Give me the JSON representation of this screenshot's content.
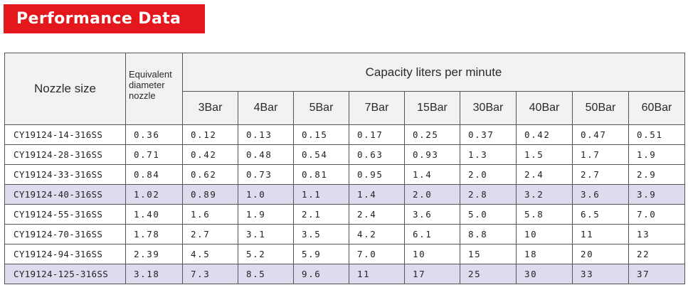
{
  "title": "Performance Data",
  "header": {
    "nozzle_size": "Nozzle size",
    "equivalent_diameter": [
      "Equivalent",
      "diameter",
      "nozzle"
    ],
    "capacity": "Capacity liters per minute",
    "pressures": [
      "3Bar",
      "4Bar",
      "5Bar",
      "7Bar",
      "15Bar",
      "30Bar",
      "40Bar",
      "50Bar",
      "60Bar"
    ]
  },
  "rows": [
    {
      "model": "CY19124-14-316SS",
      "eq_diameter": "0.36",
      "highlight": false,
      "flows": [
        "0.12",
        "0.13",
        "0.15",
        "0.17",
        "0.25",
        "0.37",
        "0.42",
        "0.47",
        "0.51"
      ]
    },
    {
      "model": "CY19124-28-316SS",
      "eq_diameter": "0.71",
      "highlight": false,
      "flows": [
        "0.42",
        "0.48",
        "0.54",
        "0.63",
        "0.93",
        "1.3",
        "1.5",
        "1.7",
        "1.9"
      ]
    },
    {
      "model": "CY19124-33-316SS",
      "eq_diameter": "0.84",
      "highlight": false,
      "flows": [
        "0.62",
        "0.73",
        "0.81",
        "0.95",
        "1.4",
        "2.0",
        "2.4",
        "2.7",
        "2.9"
      ]
    },
    {
      "model": "CY19124-40-316SS",
      "eq_diameter": "1.02",
      "highlight": true,
      "flows": [
        "0.89",
        "1.0",
        "1.1",
        "1.4",
        "2.0",
        "2.8",
        "3.2",
        "3.6",
        "3.9"
      ]
    },
    {
      "model": "CY19124-55-316SS",
      "eq_diameter": "1.40",
      "highlight": false,
      "flows": [
        "1.6",
        "1.9",
        "2.1",
        "2.4",
        "3.6",
        "5.0",
        "5.8",
        "6.5",
        "7.0"
      ]
    },
    {
      "model": "CY19124-70-316SS",
      "eq_diameter": "1.78",
      "highlight": false,
      "flows": [
        "2.7",
        "3.1",
        "3.5",
        "4.2",
        "6.1",
        "8.8",
        "10",
        "11",
        "13"
      ]
    },
    {
      "model": "CY19124-94-316SS",
      "eq_diameter": "2.39",
      "highlight": false,
      "flows": [
        "4.5",
        "5.2",
        "5.9",
        "7.0",
        "10",
        "15",
        "18",
        "20",
        "22"
      ]
    },
    {
      "model": "CY19124-125-316SS",
      "eq_diameter": "3.18",
      "highlight": true,
      "flows": [
        "7.3",
        "8.5",
        "9.6",
        "11",
        "17",
        "25",
        "30",
        "33",
        "37"
      ]
    }
  ],
  "colors": {
    "banner_red": "#e4171c",
    "highlight_row": "#dcdcee",
    "header_bg": "#f2f2f2"
  }
}
